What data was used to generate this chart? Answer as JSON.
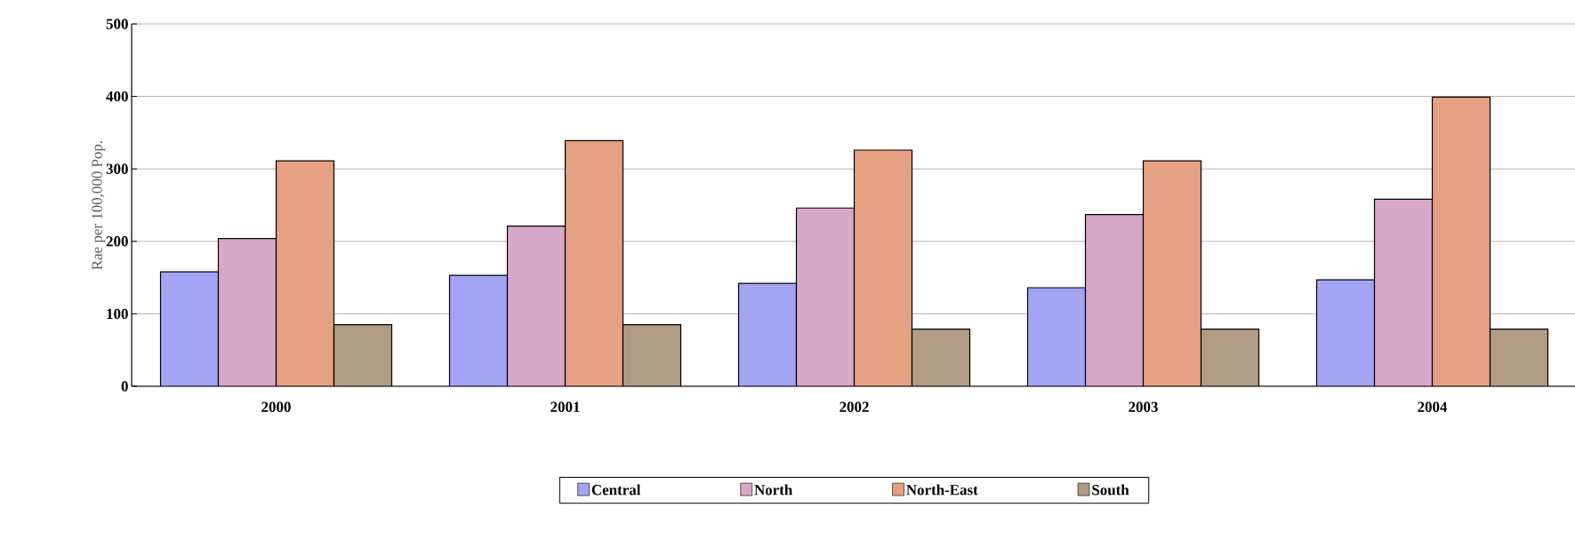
{
  "chart_data": {
    "type": "bar",
    "ylabel": "Rae per 100,000 Pop.",
    "categories": [
      "2000",
      "2001",
      "2002",
      "2003",
      "2004"
    ],
    "series": [
      {
        "name": "Central",
        "color": "#a4a4f4",
        "values": [
          158,
          153,
          142,
          136,
          147
        ]
      },
      {
        "name": "North",
        "color": "#d8a8c8",
        "values": [
          204,
          221,
          246,
          237,
          258
        ]
      },
      {
        "name": "North-East",
        "color": "#e4a080",
        "values": [
          311,
          339,
          326,
          311,
          399
        ]
      },
      {
        "name": "South",
        "color": "#b09c84",
        "values": [
          85,
          85,
          79,
          79,
          79
        ]
      }
    ],
    "ylim": [
      0,
      500
    ],
    "yticks": [
      0,
      100,
      200,
      300,
      400,
      500
    ],
    "grid": "y",
    "legend": "bottom"
  }
}
